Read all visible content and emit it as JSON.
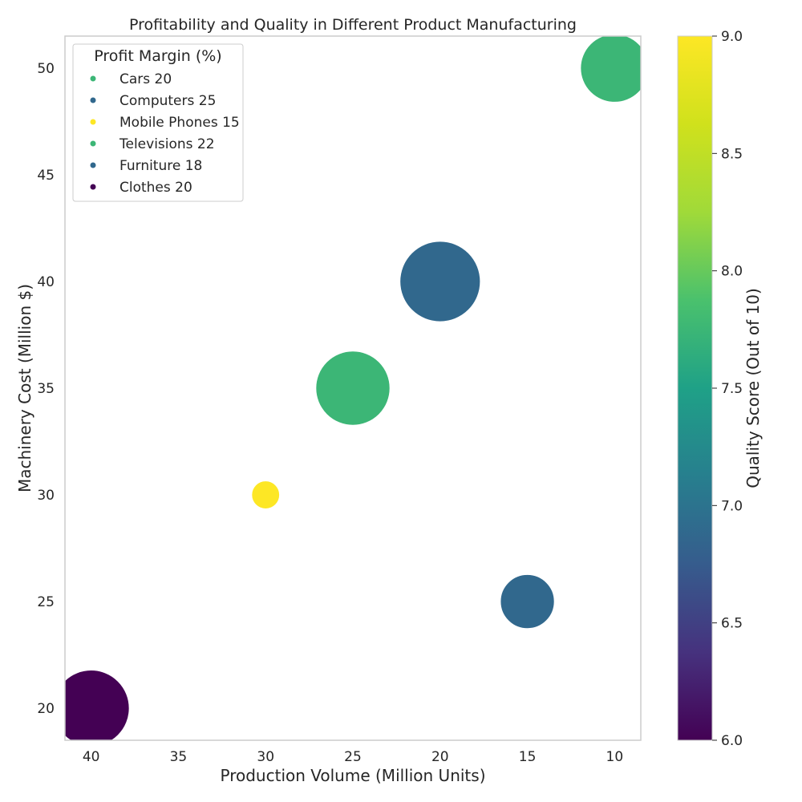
{
  "chart_data": {
    "type": "scatter",
    "title": "Profitability and Quality in Different Product Manufacturing",
    "xlabel": "Production Volume (Million Units)",
    "ylabel": "Machinery Cost (Million $)",
    "x_inverted": true,
    "xlim": [
      41.5,
      8.5
    ],
    "ylim": [
      18.5,
      51.5
    ],
    "xticks": [
      40,
      35,
      30,
      25,
      20,
      15,
      10
    ],
    "yticks": [
      20,
      25,
      30,
      35,
      40,
      45,
      50
    ],
    "grid": false,
    "legend": {
      "title": "Profit Margin (%)",
      "placement": "top-left"
    },
    "colorbar": {
      "label": "Quality Score (Out of 10)",
      "colormap": "viridis",
      "range": [
        6.0,
        9.0
      ],
      "ticks": [
        "6.0",
        "6.5",
        "7.0",
        "7.5",
        "8.0",
        "8.5",
        "9.0"
      ]
    },
    "points": [
      {
        "label": "Cars 20",
        "x": 10,
        "y": 50,
        "quality": 8,
        "profit_margin": 20,
        "size_rel": 0.72
      },
      {
        "label": "Computers 25",
        "x": 20,
        "y": 40,
        "quality": 7,
        "profit_margin": 25,
        "size_rel": 1.0
      },
      {
        "label": "Mobile Phones 15",
        "x": 30,
        "y": 30,
        "quality": 9,
        "profit_margin": 15,
        "size_rel": 0.12
      },
      {
        "label": "Televisions 22",
        "x": 25,
        "y": 35,
        "quality": 8,
        "profit_margin": 22,
        "size_rel": 0.85
      },
      {
        "label": "Furniture 18",
        "x": 15,
        "y": 25,
        "quality": 7,
        "profit_margin": 18,
        "size_rel": 0.45
      },
      {
        "label": "Clothes 20",
        "x": 40,
        "y": 20,
        "quality": 6,
        "profit_margin": 20,
        "size_rel": 0.9
      }
    ]
  }
}
